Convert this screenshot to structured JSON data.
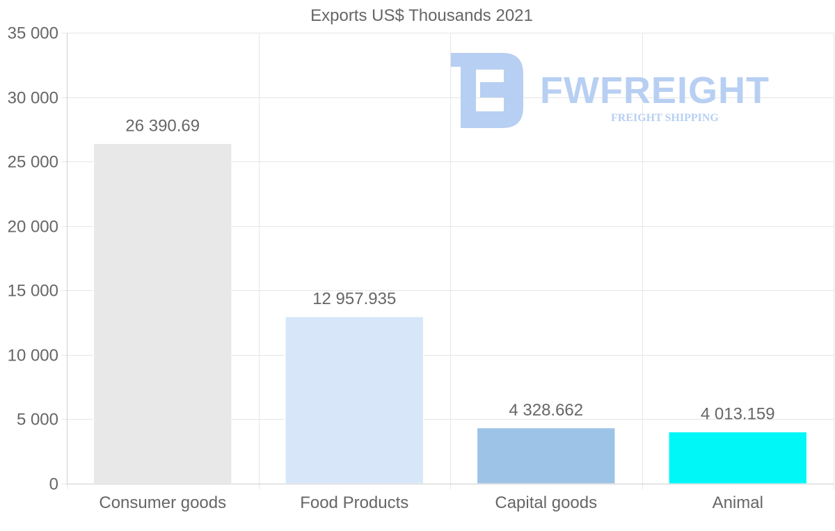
{
  "chart_data": {
    "type": "bar",
    "title": "Exports US$ Thousands 2021",
    "categories": [
      "Consumer goods",
      "Food Products",
      "Capital goods",
      "Animal"
    ],
    "values": [
      26390.69,
      12957.935,
      4328.662,
      4013.159
    ],
    "value_labels": [
      "26 390.69",
      "12 957.935",
      "4 328.662",
      "4 013.159"
    ],
    "colors": [
      "#e8e8e8",
      "#d7e7f9",
      "#9dc3e6",
      "#00f7f7"
    ],
    "ylim": [
      0,
      35000
    ],
    "yticks": [
      0,
      5000,
      10000,
      15000,
      20000,
      25000,
      30000,
      35000
    ],
    "ytick_labels": [
      "0",
      "5 000",
      "10 000",
      "15 000",
      "20 000",
      "25 000",
      "30 000",
      "35 000"
    ],
    "xlabel": "",
    "ylabel": "",
    "grid": true,
    "legend": "none"
  },
  "watermark": {
    "name": "FWFREIGHT",
    "tagline": "FREIGHT SHIPPING",
    "color": "#b4cdf2"
  }
}
